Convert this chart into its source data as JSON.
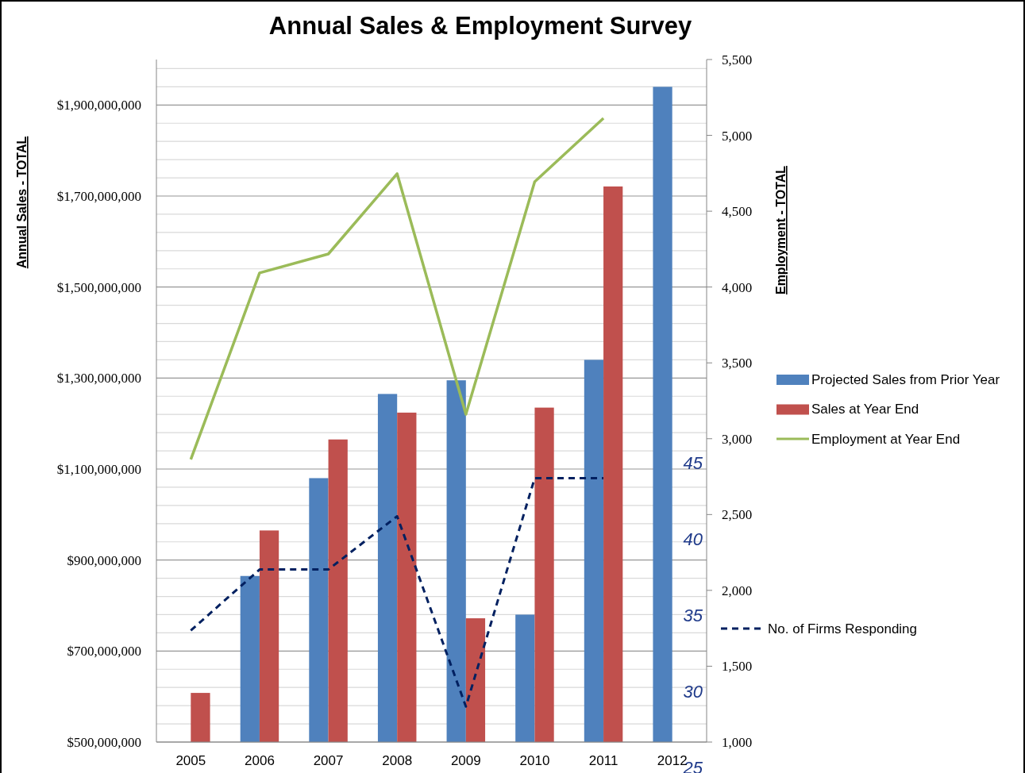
{
  "chart_data": {
    "type": "bar",
    "title": "Annual Sales & Employment Survey",
    "ylabel": "Annual Sales - TOTAL",
    "y2label": "Employment - TOTAL",
    "categories": [
      "2005",
      "2006",
      "2007",
      "2008",
      "2009",
      "2010",
      "2011",
      "2012"
    ],
    "series": [
      {
        "name": "Projected Sales from Prior Year",
        "color": "#4f81bd",
        "values": [
          null,
          865000000,
          1080000000,
          1265000000,
          1295000000,
          780000000,
          1340000000,
          1940000000
        ]
      },
      {
        "name": "Sales at Year End",
        "color": "#c0504d",
        "values": [
          608000000,
          965000000,
          1165000000,
          1224000000,
          772000000,
          1235000000,
          1721000000,
          null
        ]
      },
      {
        "name": "Employment at Year End",
        "type": "line",
        "axis": "y2",
        "color": "#9bbb59",
        "line_style": "solid",
        "values": [
          2863,
          4093,
          4218,
          4747,
          3161,
          4694,
          5113,
          null
        ]
      },
      {
        "name": "No. of Firms Responding",
        "type": "line",
        "axis": "y3",
        "color": "#002060",
        "line_style": "dashed",
        "values": [
          34,
          38,
          38,
          41.5,
          29,
          44,
          44,
          null
        ]
      }
    ],
    "ylim": [
      500000000,
      2000000000
    ],
    "yticks": [
      {
        "value": 500000000,
        "label": "$500,000,000"
      },
      {
        "value": 540000000,
        "label": null
      },
      {
        "value": 580000000,
        "label": null
      },
      {
        "value": 620000000,
        "label": null
      },
      {
        "value": 660000000,
        "label": null
      },
      {
        "value": 700000000,
        "label": "$700,000,000"
      },
      {
        "value": 740000000,
        "label": null
      },
      {
        "value": 780000000,
        "label": null
      },
      {
        "value": 820000000,
        "label": null
      },
      {
        "value": 860000000,
        "label": null
      },
      {
        "value": 900000000,
        "label": "$900,000,000"
      },
      {
        "value": 940000000,
        "label": null
      },
      {
        "value": 980000000,
        "label": null
      },
      {
        "value": 1020000000,
        "label": null
      },
      {
        "value": 1060000000,
        "label": null
      },
      {
        "value": 1100000000,
        "label": "$1,100,000,000"
      },
      {
        "value": 1140000000,
        "label": null
      },
      {
        "value": 1180000000,
        "label": null
      },
      {
        "value": 1220000000,
        "label": null
      },
      {
        "value": 1260000000,
        "label": null
      },
      {
        "value": 1300000000,
        "label": "$1,300,000,000"
      },
      {
        "value": 1340000000,
        "label": null
      },
      {
        "value": 1380000000,
        "label": null
      },
      {
        "value": 1420000000,
        "label": null
      },
      {
        "value": 1460000000,
        "label": null
      },
      {
        "value": 1500000000,
        "label": "$1,500,000,000"
      },
      {
        "value": 1540000000,
        "label": null
      },
      {
        "value": 1580000000,
        "label": null
      },
      {
        "value": 1620000000,
        "label": null
      },
      {
        "value": 1660000000,
        "label": null
      },
      {
        "value": 1700000000,
        "label": "$1,700,000,000"
      },
      {
        "value": 1740000000,
        "label": null
      },
      {
        "value": 1780000000,
        "label": null
      },
      {
        "value": 1820000000,
        "label": null
      },
      {
        "value": 1860000000,
        "label": null
      },
      {
        "value": 1900000000,
        "label": "$1,900,000,000"
      },
      {
        "value": 1940000000,
        "label": null
      },
      {
        "value": 1980000000,
        "label": null
      }
    ],
    "y2lim": [
      1000,
      5500
    ],
    "y2ticks": [
      {
        "value": 1000,
        "label": "1,000"
      },
      {
        "value": 1500,
        "label": "1,500"
      },
      {
        "value": 2000,
        "label": "2,000"
      },
      {
        "value": 2500,
        "label": "2,500"
      },
      {
        "value": 3000,
        "label": "3,000"
      },
      {
        "value": 3500,
        "label": "3,500"
      },
      {
        "value": 4000,
        "label": "4,000"
      },
      {
        "value": 4500,
        "label": "4,500"
      },
      {
        "value": 5000,
        "label": "5,000"
      },
      {
        "value": 5500,
        "label": "5,500"
      }
    ],
    "y3lim": [
      25,
      71.5
    ],
    "y3ticks": [
      25,
      30,
      35,
      40,
      45
    ],
    "grid": "y",
    "legend": "right",
    "marker": "none"
  }
}
